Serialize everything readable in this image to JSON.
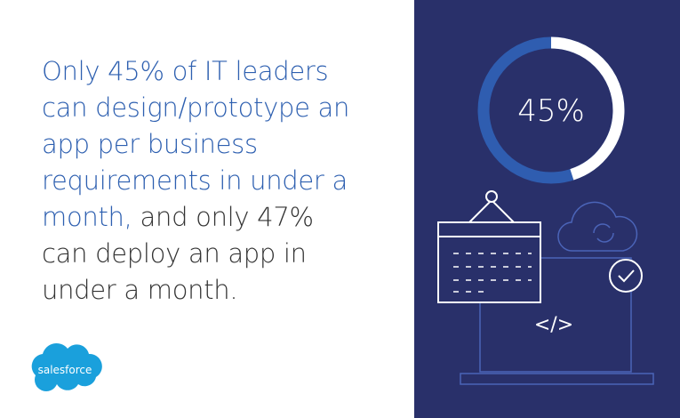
{
  "headline": {
    "emphasis": [
      "Only 45% of IT leaders",
      "can design/prototype an",
      "app per business",
      "requirements in under a",
      "month,"
    ],
    "rest": [
      "and only 47%",
      "can deploy an app in",
      "under a month."
    ]
  },
  "logo": "salesforce",
  "donut": {
    "value": 45,
    "max": 100,
    "label": "45%"
  },
  "code_icon": "</>"
}
